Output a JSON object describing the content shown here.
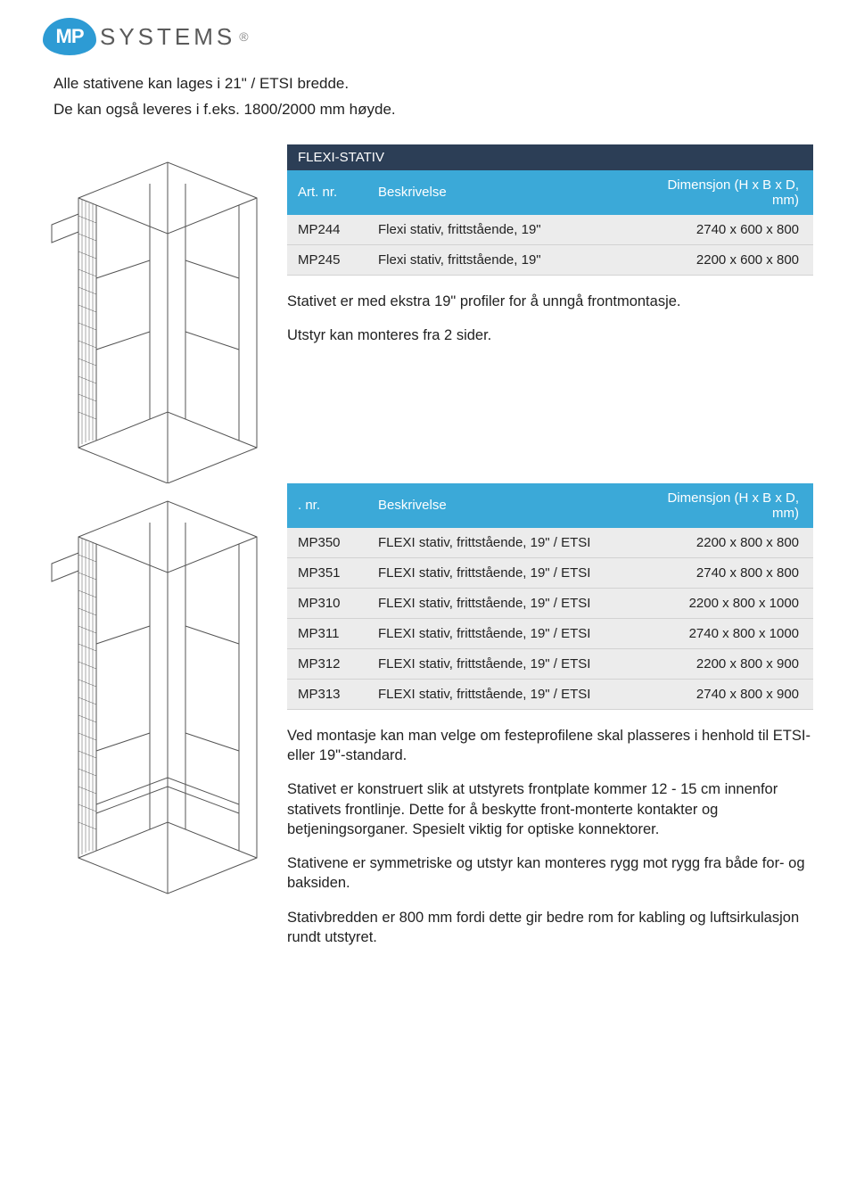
{
  "logo": {
    "badge": "MP",
    "brand": "SYSTEMS",
    "reg": "®"
  },
  "intro": {
    "line1": "Alle stativene kan lages i 21\" / ETSI bredde.",
    "line2": "De kan også leveres i f.eks. 1800/2000 mm høyde."
  },
  "section1": {
    "title": "FLEXI-STATIV",
    "col_artnr": "Art. nr.",
    "col_beskr": "Beskrivelse",
    "col_dim": "Dimensjon (H x B x D, mm)",
    "rows": [
      {
        "nr": "MP244",
        "b": "Flexi stativ, frittstående, 19\"",
        "d": "2740 x 600 x 800"
      },
      {
        "nr": "MP245",
        "b": "Flexi stativ, frittstående, 19\"",
        "d": "2200 x 600 x 800"
      }
    ],
    "note1": "Stativet er med ekstra 19\" profiler for å unngå frontmontasje.",
    "note2": "Utstyr kan monteres fra 2 sider."
  },
  "section2": {
    "col_artnr": ". nr.",
    "col_beskr": "Beskrivelse",
    "col_dim": "Dimensjon (H x B x D, mm)",
    "rows": [
      {
        "nr": "MP350",
        "b": "FLEXI stativ, frittstående, 19\" / ETSI",
        "d": "2200 x 800 x 800"
      },
      {
        "nr": "MP351",
        "b": "FLEXI stativ, frittstående, 19\" / ETSI",
        "d": "2740 x 800 x 800"
      },
      {
        "nr": "MP310",
        "b": "FLEXI stativ, frittstående, 19\" / ETSI",
        "d": "2200 x 800 x 1000"
      },
      {
        "nr": "MP311",
        "b": "FLEXI stativ, frittstående, 19\" / ETSI",
        "d": "2740 x 800 x 1000"
      },
      {
        "nr": "MP312",
        "b": "FLEXI stativ, frittstående, 19\" / ETSI",
        "d": "2200 x 800 x 900"
      },
      {
        "nr": "MP313",
        "b": "FLEXI stativ, frittstående, 19\" / ETSI",
        "d": "2740 x 800 x 900"
      }
    ],
    "p1": "Ved montasje kan man velge om festeprofilene skal plasseres i henhold til ETSI- eller 19\"-standard.",
    "p2": "Stativet er konstruert slik at utstyrets frontplate kommer 12 - 15 cm innenfor stativets frontlinje. Dette for å beskytte front-monterte kontakter og betjeningsorganer. Spesielt viktig for optiske konnektorer.",
    "p3": "Stativene er symmetriske og utstyr kan monteres rygg mot rygg fra både for- og baksiden.",
    "p4": "Stativbredden er 800 mm fordi dette gir bedre rom for kabling og luftsirkulasjon rundt utstyret."
  },
  "style": {
    "header_bg": "#2c3e56",
    "th_bg": "#3ba9d8",
    "td_bg": "#ececec",
    "line_color": "#555"
  }
}
